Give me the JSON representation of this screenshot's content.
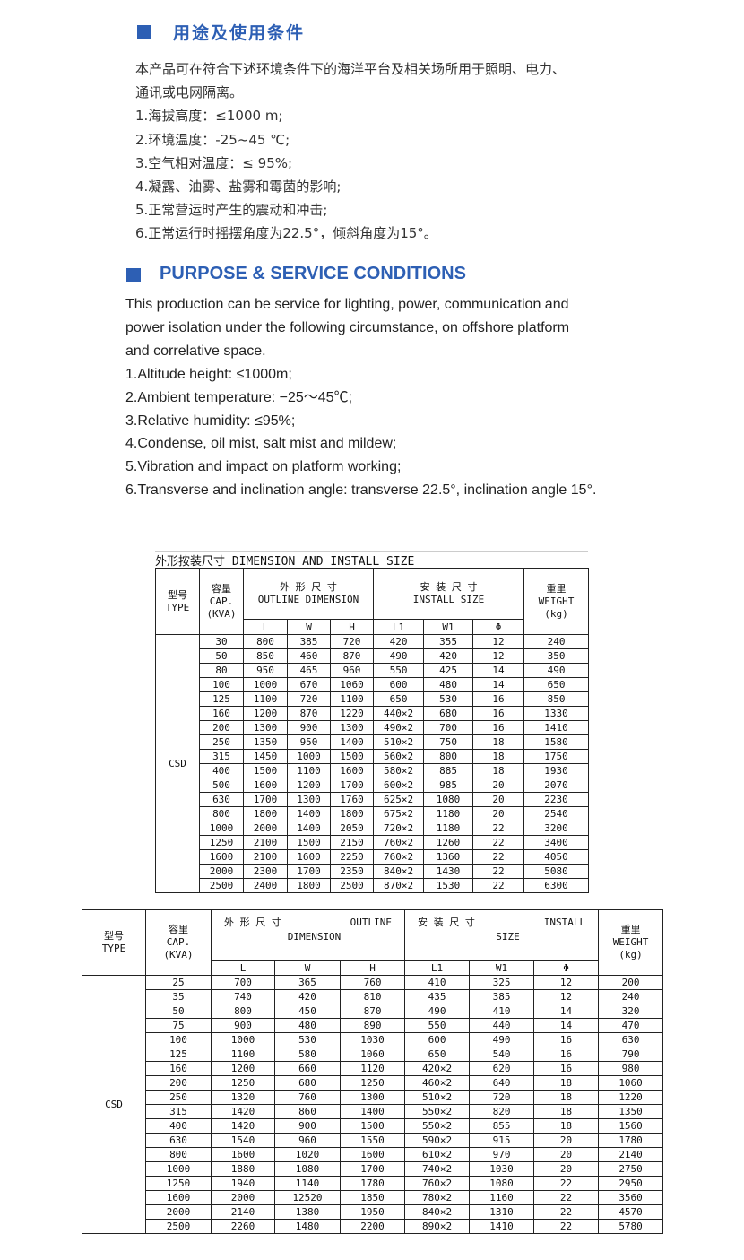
{
  "cn_section": {
    "heading": "用途及使用条件",
    "lines": [
      "本产品可在符合下述环境条件下的海洋平台及相关场所用于照明、电力、",
      "通讯或电网隔离。",
      "1.海拔高度：≤1000 m;",
      "2.环境温度：-25~45 ℃;",
      "3.空气相对温度：≤ 95%;",
      "4.凝露、油雾、盐雾和霉菌的影响;",
      "5.正常营运时产生的震动和冲击;",
      "6.正常运行时摇摆角度为22.5°，倾斜角度为15°。"
    ]
  },
  "en_section": {
    "heading": "PURPOSE & SERVICE CONDITIONS",
    "lines": [
      "This production can be service for lighting, power, communication and",
      "power isolation under the following circumstance, on offshore platform",
      "and correlative space.",
      "1.Altitude height: ≤1000m;",
      "2.Ambient temperature: −25～45℃;",
      "3.Relative humidity: ≤95%;",
      "4.Condense, oil mist, salt mist and mildew;",
      "5.Vibration and impact on platform working;",
      "6.Transverse and inclination angle: transverse 22.5°, inclination angle 15°."
    ]
  },
  "accent_color": "#2d5fb4",
  "table1": {
    "caption": "外形按装尺寸 DIMENSION AND INSTALL SIZE",
    "type_header": [
      "型号",
      "TYPE"
    ],
    "cap_header": [
      "容量",
      "CAP.",
      "(KVA)"
    ],
    "outline_header": [
      "外 形 尺 寸",
      "OUTLINE DIMENSION"
    ],
    "install_header": [
      "安 装 尺 寸",
      "INSTALL SIZE"
    ],
    "weight_header": [
      "重里",
      "WEIGHT",
      "(kg)"
    ],
    "sub_headers": [
      "L",
      "W",
      "H",
      "L1",
      "W1",
      "Φ"
    ],
    "type": "CSD",
    "rows": [
      [
        "30",
        "800",
        "385",
        "720",
        "420",
        "355",
        "12",
        "240"
      ],
      [
        "50",
        "850",
        "460",
        "870",
        "490",
        "420",
        "12",
        "350"
      ],
      [
        "80",
        "950",
        "465",
        "960",
        "550",
        "425",
        "14",
        "490"
      ],
      [
        "100",
        "1000",
        "670",
        "1060",
        "600",
        "480",
        "14",
        "650"
      ],
      [
        "125",
        "1100",
        "720",
        "1100",
        "650",
        "530",
        "16",
        "850"
      ],
      [
        "160",
        "1200",
        "870",
        "1220",
        "440×2",
        "680",
        "16",
        "1330"
      ],
      [
        "200",
        "1300",
        "900",
        "1300",
        "490×2",
        "700",
        "16",
        "1410"
      ],
      [
        "250",
        "1350",
        "950",
        "1400",
        "510×2",
        "750",
        "18",
        "1580"
      ],
      [
        "315",
        "1450",
        "1000",
        "1500",
        "560×2",
        "800",
        "18",
        "1750"
      ],
      [
        "400",
        "1500",
        "1100",
        "1600",
        "580×2",
        "885",
        "18",
        "1930"
      ],
      [
        "500",
        "1600",
        "1200",
        "1700",
        "600×2",
        "985",
        "20",
        "2070"
      ],
      [
        "630",
        "1700",
        "1300",
        "1760",
        "625×2",
        "1080",
        "20",
        "2230"
      ],
      [
        "800",
        "1800",
        "1400",
        "1800",
        "675×2",
        "1180",
        "20",
        "2540"
      ],
      [
        "1000",
        "2000",
        "1400",
        "2050",
        "720×2",
        "1180",
        "22",
        "3200"
      ],
      [
        "1250",
        "2100",
        "1500",
        "2150",
        "760×2",
        "1260",
        "22",
        "3400"
      ],
      [
        "1600",
        "2100",
        "1600",
        "2250",
        "760×2",
        "1360",
        "22",
        "4050"
      ],
      [
        "2000",
        "2300",
        "1700",
        "2350",
        "840×2",
        "1430",
        "22",
        "5080"
      ],
      [
        "2500",
        "2400",
        "1800",
        "2500",
        "870×2",
        "1530",
        "22",
        "6300"
      ]
    ]
  },
  "table2": {
    "type_header": [
      "型号",
      "TYPE"
    ],
    "cap_header": [
      "容里",
      "CAP.",
      "(KVA)"
    ],
    "outline_header": [
      "外 形 尺 寸",
      "OUTLINE",
      "DIMENSION"
    ],
    "install_header": [
      "安 装 尺 寸",
      "INSTALL",
      "SIZE"
    ],
    "weight_header": [
      "重里",
      "WEIGHT",
      "(kg)"
    ],
    "sub_headers": [
      "L",
      "W",
      "H",
      "L1",
      "W1",
      "Φ"
    ],
    "type": "CSD",
    "rows": [
      [
        "25",
        "700",
        "365",
        "760",
        "410",
        "325",
        "12",
        "200"
      ],
      [
        "35",
        "740",
        "420",
        "810",
        "435",
        "385",
        "12",
        "240"
      ],
      [
        "50",
        "800",
        "450",
        "870",
        "490",
        "410",
        "14",
        "320"
      ],
      [
        "75",
        "900",
        "480",
        "890",
        "550",
        "440",
        "14",
        "470"
      ],
      [
        "100",
        "1000",
        "530",
        "1030",
        "600",
        "490",
        "16",
        "630"
      ],
      [
        "125",
        "1100",
        "580",
        "1060",
        "650",
        "540",
        "16",
        "790"
      ],
      [
        "160",
        "1200",
        "660",
        "1120",
        "420×2",
        "620",
        "16",
        "980"
      ],
      [
        "200",
        "1250",
        "680",
        "1250",
        "460×2",
        "640",
        "18",
        "1060"
      ],
      [
        "250",
        "1320",
        "760",
        "1300",
        "510×2",
        "720",
        "18",
        "1220"
      ],
      [
        "315",
        "1420",
        "860",
        "1400",
        "550×2",
        "820",
        "18",
        "1350"
      ],
      [
        "400",
        "1420",
        "900",
        "1500",
        "550×2",
        "855",
        "18",
        "1560"
      ],
      [
        "630",
        "1540",
        "960",
        "1550",
        "590×2",
        "915",
        "20",
        "1780"
      ],
      [
        "800",
        "1600",
        "1020",
        "1600",
        "610×2",
        "970",
        "20",
        "2140"
      ],
      [
        "1000",
        "1880",
        "1080",
        "1700",
        "740×2",
        "1030",
        "20",
        "2750"
      ],
      [
        "1250",
        "1940",
        "1140",
        "1780",
        "760×2",
        "1080",
        "22",
        "2950"
      ],
      [
        "1600",
        "2000",
        "12520",
        "1850",
        "780×2",
        "1160",
        "22",
        "3560"
      ],
      [
        "2000",
        "2140",
        "1380",
        "1950",
        "840×2",
        "1310",
        "22",
        "4570"
      ],
      [
        "2500",
        "2260",
        "1480",
        "2200",
        "890×2",
        "1410",
        "22",
        "5780"
      ]
    ]
  }
}
